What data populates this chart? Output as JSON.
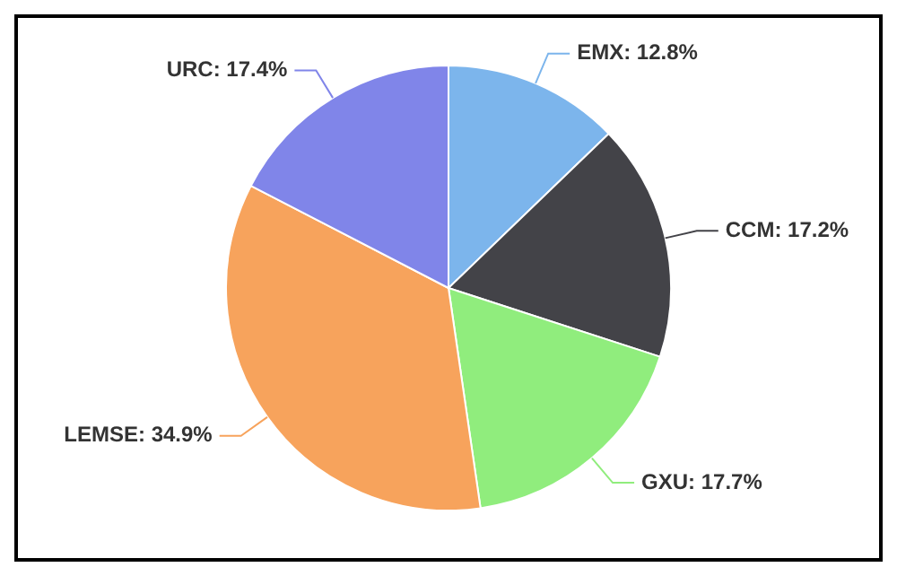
{
  "chart_data": {
    "type": "pie",
    "categories": [
      "EMX",
      "CCM",
      "GXU",
      "LEMSE",
      "URC"
    ],
    "values": [
      12.8,
      17.2,
      17.7,
      34.9,
      17.4
    ],
    "colors": [
      "#7cb5ec",
      "#434348",
      "#90ed7d",
      "#f7a35c",
      "#8085e9"
    ],
    "value_labels": [
      ": 12.8%",
      ": 17.2%",
      ": 17.7%",
      ": 34.9%",
      ": 17.4%"
    ],
    "legend": false
  }
}
